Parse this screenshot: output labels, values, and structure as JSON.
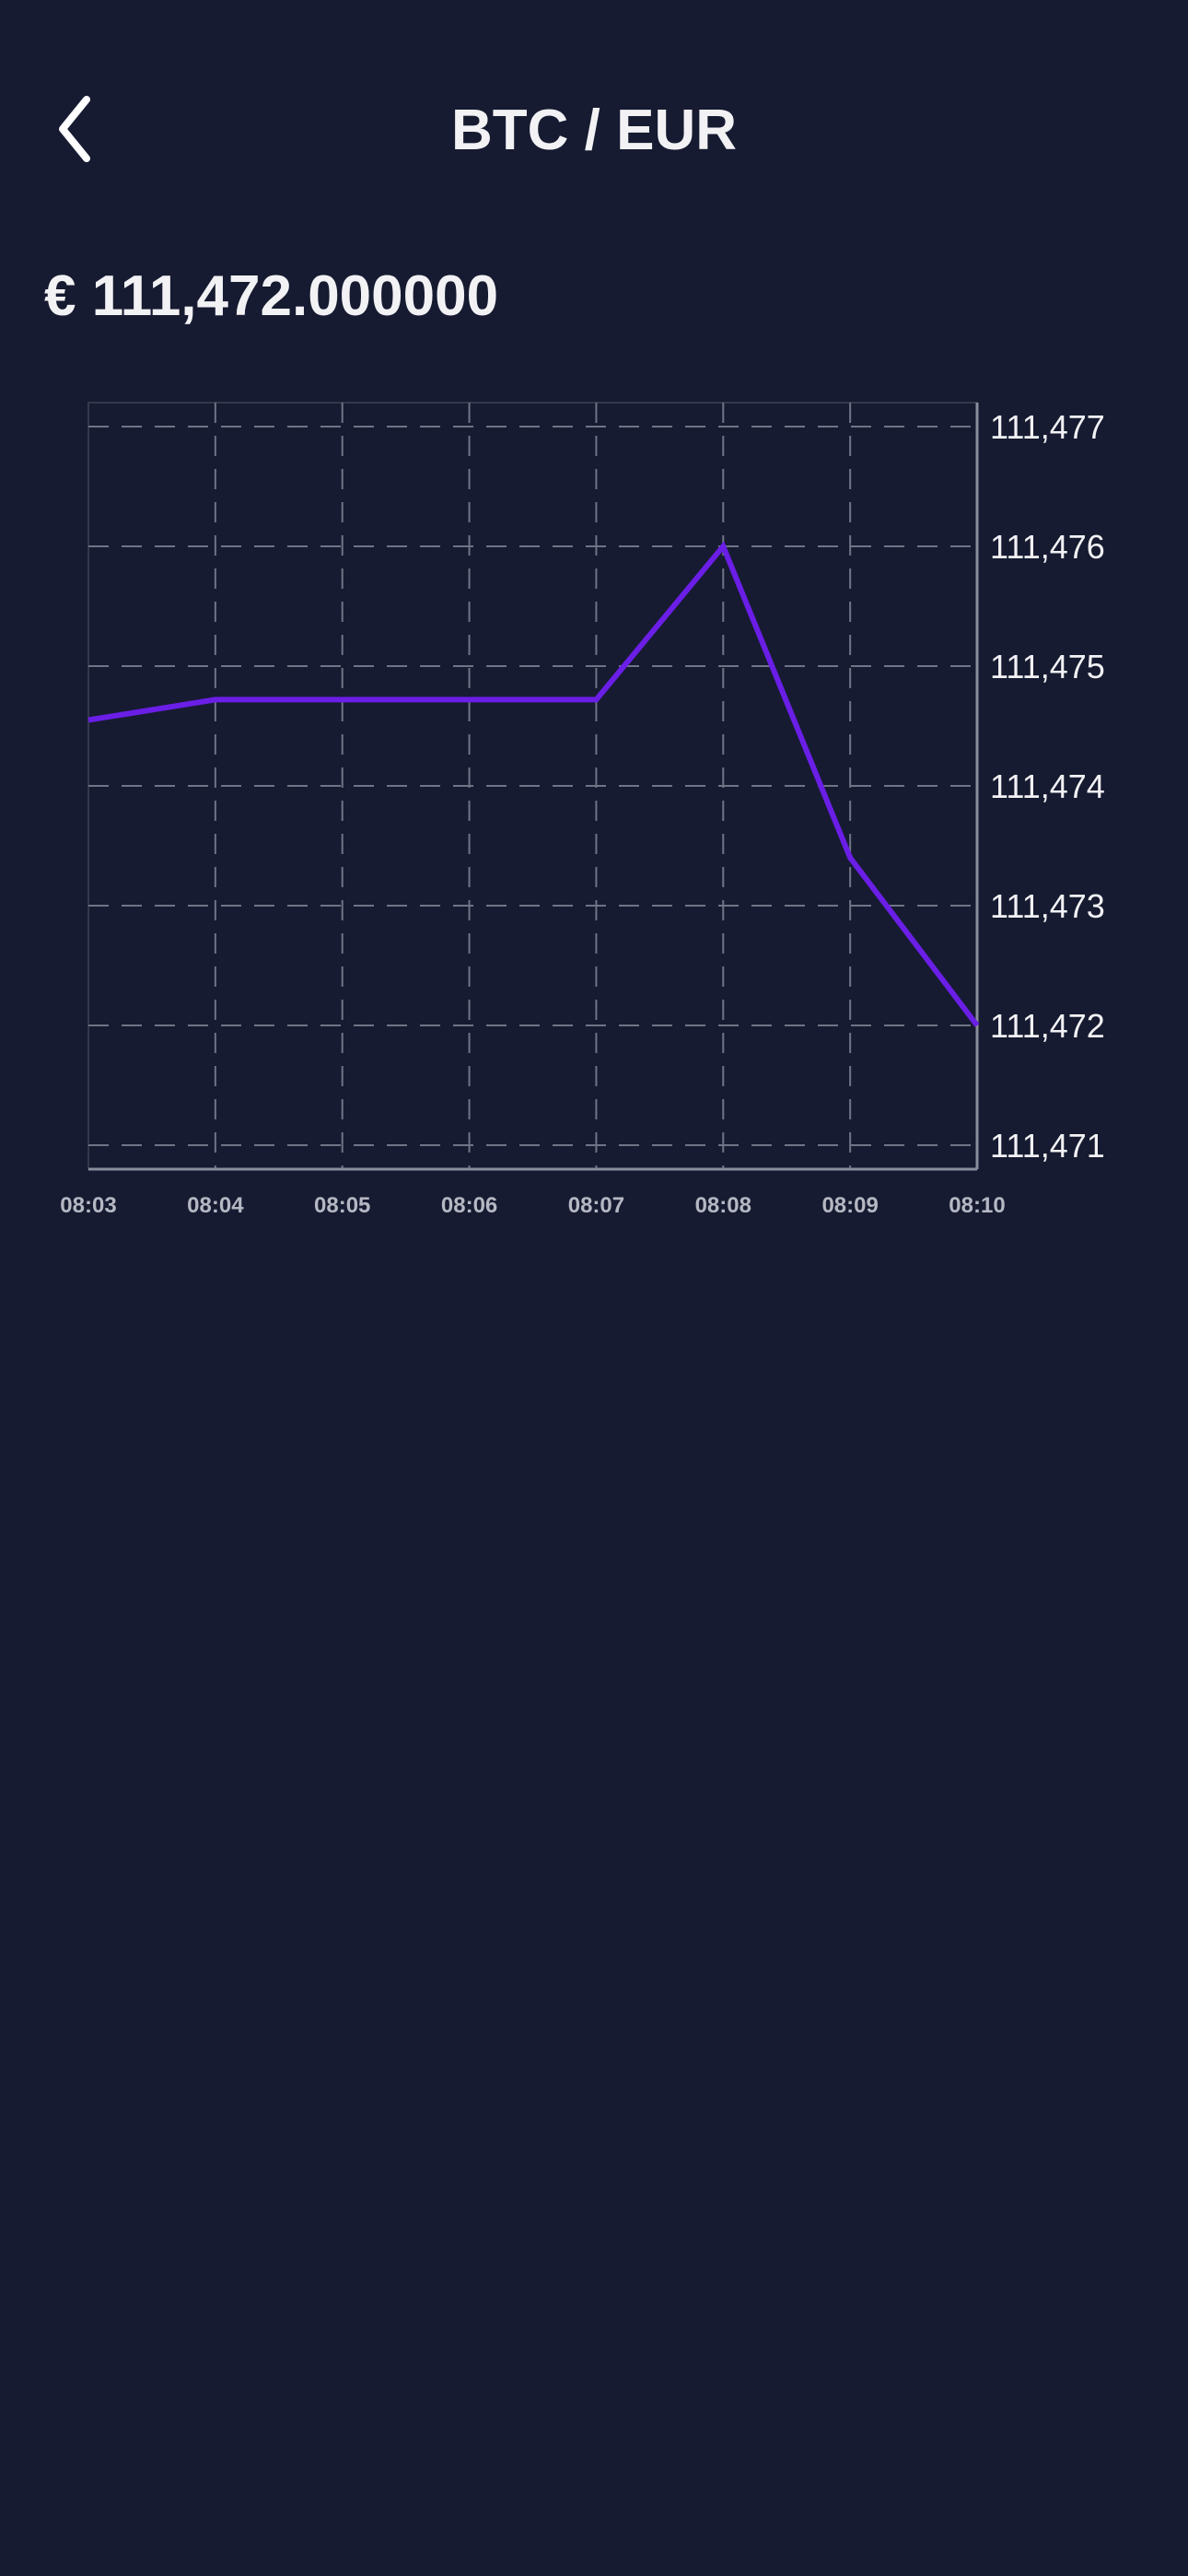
{
  "header": {
    "back_icon": "chevron-left-icon",
    "title": "BTC / EUR"
  },
  "price": {
    "display": "€ 111,472.000000"
  },
  "colors": {
    "background": "#161b31",
    "line": "#6a1ee6",
    "grid": "#6f7486",
    "text": "#f2f2f5",
    "tick_x": "#b5b8c3"
  },
  "chart_data": {
    "type": "line",
    "title": "",
    "xlabel": "",
    "ylabel": "",
    "x": [
      "08:03",
      "08:04",
      "08:05",
      "08:06",
      "08:07",
      "08:08",
      "08:09",
      "08:10"
    ],
    "series": [
      {
        "values": [
          111474.55,
          111474.72,
          111474.72,
          111474.72,
          111474.72,
          111476.0,
          111473.4,
          111472.0
        ]
      }
    ],
    "ylim": [
      111470.8,
      111477.2
    ],
    "yticks": [
      111477,
      111476,
      111475,
      111474,
      111473,
      111472,
      111471
    ],
    "ytick_labels": [
      "111,477",
      "111,476",
      "111,475",
      "111,474",
      "111,473",
      "111,472",
      "111,471"
    ],
    "y_axis_side": "right",
    "grid": true,
    "grid_style": "dashed",
    "legend": false
  }
}
